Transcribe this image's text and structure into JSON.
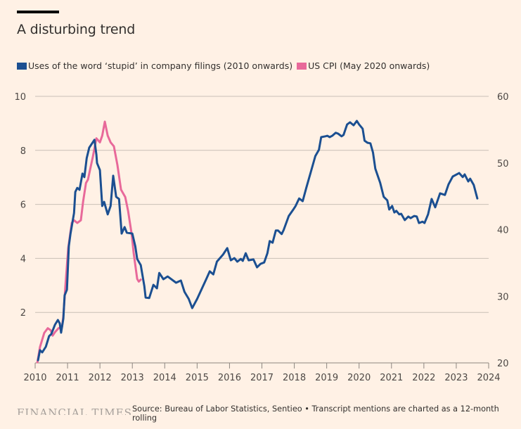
{
  "chart_data": {
    "type": "line",
    "title": "A disturbing trend",
    "xlabel": "",
    "ylabel_left": "",
    "ylabel_right": "",
    "x_ticks": [
      2010,
      2011,
      2012,
      2013,
      2014,
      2015,
      2016,
      2017,
      2018,
      2019,
      2020,
      2021,
      2022,
      2023,
      2024
    ],
    "xlim": [
      2010,
      2024
    ],
    "y_left_ticks": [
      2,
      4,
      6,
      8,
      10
    ],
    "y_left_lim": [
      0.13,
      10
    ],
    "y_right_ticks": [
      20,
      30,
      40,
      50,
      60
    ],
    "y_right_lim": [
      20,
      60
    ],
    "grid": true,
    "legend_position": "top-left",
    "legend": [
      {
        "label": "Uses of the word ‘stupid’ in company filings (2010 onwards)",
        "color": "#1b4f91"
      },
      {
        "label": "US CPI (May 2020 onwards)",
        "color": "#e8699a"
      }
    ],
    "series": [
      {
        "name": "Uses of the word ‘stupid’ in company filings (2010 onwards)",
        "axis": "left",
        "color": "#1b4f91",
        "x": [
          2010.09,
          2010.15,
          2010.22,
          2010.33,
          2010.43,
          2010.5,
          2010.61,
          2010.7,
          2010.76,
          2010.8,
          2010.87,
          2010.91,
          2010.98,
          2011.04,
          2011.09,
          2011.2,
          2011.24,
          2011.3,
          2011.37,
          2011.46,
          2011.52,
          2011.59,
          2011.67,
          2011.83,
          2011.89,
          2011.91,
          2012.0,
          2012.07,
          2012.13,
          2012.24,
          2012.33,
          2012.41,
          2012.5,
          2012.59,
          2012.67,
          2012.76,
          2012.83,
          2013.0,
          2013.09,
          2013.15,
          2013.26,
          2013.37,
          2013.41,
          2013.52,
          2013.65,
          2013.76,
          2013.83,
          2013.96,
          2014.09,
          2014.35,
          2014.5,
          2014.61,
          2014.74,
          2014.85,
          2015.0,
          2015.15,
          2015.28,
          2015.39,
          2015.5,
          2015.61,
          2015.8,
          2015.93,
          2016.04,
          2016.15,
          2016.24,
          2016.35,
          2016.41,
          2016.5,
          2016.59,
          2016.74,
          2016.85,
          2016.96,
          2017.07,
          2017.17,
          2017.24,
          2017.33,
          2017.43,
          2017.5,
          2017.61,
          2017.67,
          2017.83,
          2017.98,
          2018.04,
          2018.15,
          2018.26,
          2018.37,
          2018.52,
          2018.65,
          2018.76,
          2018.83,
          2018.96,
          2019.02,
          2019.09,
          2019.17,
          2019.28,
          2019.35,
          2019.46,
          2019.52,
          2019.63,
          2019.72,
          2019.83,
          2019.93,
          2020.0,
          2020.11,
          2020.17,
          2020.26,
          2020.35,
          2020.43,
          2020.5,
          2020.65,
          2020.76,
          2020.87,
          2020.93,
          2021.02,
          2021.09,
          2021.15,
          2021.24,
          2021.3,
          2021.41,
          2021.52,
          2021.59,
          2021.7,
          2021.78,
          2021.85,
          2021.96,
          2022.02,
          2022.13,
          2022.24,
          2022.35,
          2022.5,
          2022.65,
          2022.76,
          2022.89,
          2023.09,
          2023.2,
          2023.26,
          2023.37,
          2023.43,
          2023.54,
          2023.65
        ],
        "values": [
          0.23,
          0.6,
          0.52,
          0.73,
          1.12,
          1.2,
          1.54,
          1.72,
          1.59,
          1.25,
          1.77,
          2.63,
          2.84,
          4.45,
          4.9,
          5.68,
          6.46,
          6.61,
          6.54,
          7.14,
          7.01,
          7.71,
          8.1,
          8.39,
          7.84,
          7.53,
          7.27,
          5.94,
          6.09,
          5.63,
          5.94,
          7.06,
          6.28,
          6.2,
          4.92,
          5.16,
          4.95,
          4.92,
          4.45,
          3.98,
          3.75,
          2.97,
          2.55,
          2.53,
          3.02,
          2.89,
          3.46,
          3.23,
          3.33,
          3.1,
          3.18,
          2.76,
          2.5,
          2.16,
          2.5,
          2.89,
          3.23,
          3.52,
          3.41,
          3.88,
          4.14,
          4.38,
          3.93,
          4.01,
          3.88,
          3.98,
          3.91,
          4.19,
          3.93,
          3.96,
          3.67,
          3.8,
          3.85,
          4.19,
          4.64,
          4.58,
          5.03,
          5.03,
          4.9,
          5.05,
          5.57,
          5.83,
          5.94,
          6.22,
          6.12,
          6.61,
          7.24,
          7.79,
          8.02,
          8.49,
          8.52,
          8.54,
          8.49,
          8.54,
          8.65,
          8.62,
          8.52,
          8.57,
          8.96,
          9.04,
          8.93,
          9.09,
          8.96,
          8.8,
          8.36,
          8.28,
          8.26,
          7.92,
          7.32,
          6.8,
          6.28,
          6.15,
          5.81,
          5.94,
          5.7,
          5.76,
          5.63,
          5.65,
          5.42,
          5.55,
          5.49,
          5.57,
          5.55,
          5.31,
          5.36,
          5.31,
          5.63,
          6.2,
          5.89,
          6.41,
          6.35,
          6.74,
          7.03,
          7.16,
          7.01,
          7.11,
          6.85,
          6.95,
          6.72,
          6.22
        ]
      },
      {
        "name": "US CPI (May 2020 onwards)",
        "axis": "right",
        "color": "#e8699a",
        "x": [
          2010.07,
          2010.15,
          2010.28,
          2010.39,
          2010.48,
          2010.54,
          2010.61,
          2010.72,
          2010.83,
          2010.87,
          2010.93,
          2011.02,
          2011.13,
          2011.2,
          2011.3,
          2011.41,
          2011.48,
          2011.57,
          2011.63,
          2011.7,
          2011.78,
          2011.89,
          2012.0,
          2012.07,
          2012.15,
          2012.24,
          2012.33,
          2012.43,
          2012.54,
          2012.65,
          2012.78,
          2012.87,
          2012.98,
          2013.04,
          2013.15,
          2013.2,
          2013.26
        ],
        "values": [
          20.1,
          22.4,
          24.5,
          25.2,
          24.9,
          24.1,
          24.6,
          25.2,
          25.4,
          27.0,
          31.2,
          37.2,
          41.0,
          41.4,
          41.0,
          41.4,
          44.2,
          47.0,
          47.5,
          49.1,
          50.9,
          53.7,
          53.1,
          54.1,
          56.2,
          54.1,
          53.1,
          52.5,
          49.7,
          46.0,
          44.9,
          42.8,
          39.3,
          36.5,
          32.6,
          32.2,
          32.5
        ]
      }
    ]
  },
  "footer": {
    "logo": "FINANCIAL TIMES",
    "source": "Source: Bureau of Labor Statistics, Sentieo • Transcript mentions are charted as a 12-month rolling"
  }
}
